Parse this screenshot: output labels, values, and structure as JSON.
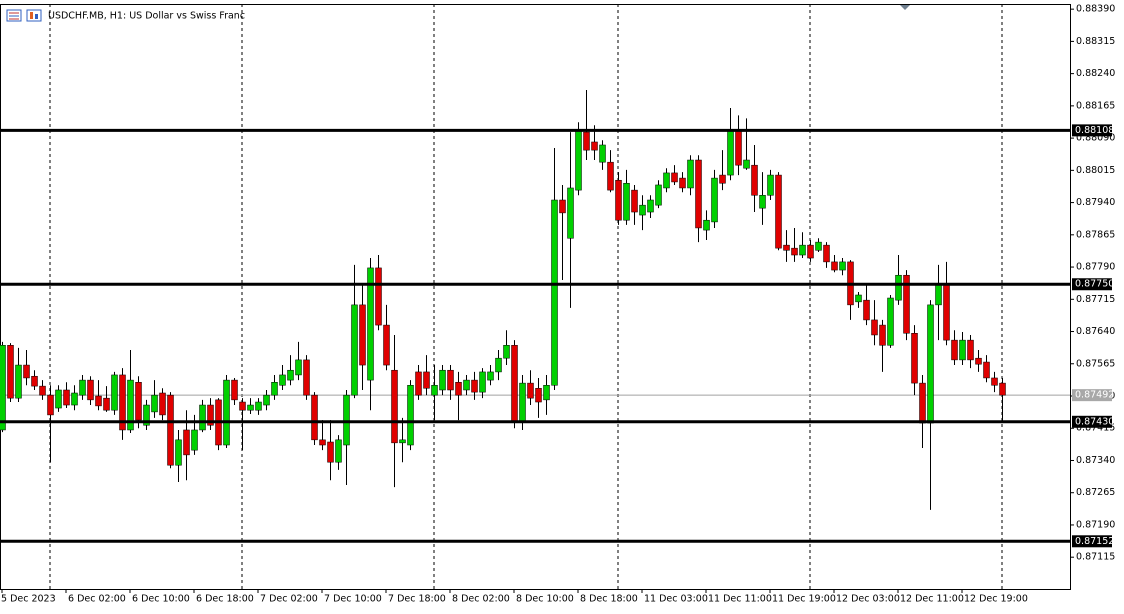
{
  "chart_data": {
    "type": "candlestick",
    "title": "USDCHF.MB, H1:  US Dollar vs Swiss Franc",
    "categories": [
      "5 Dec 2023",
      null,
      null,
      null,
      null,
      null,
      null,
      null,
      "6 Dec 02:00",
      null,
      null,
      null,
      null,
      null,
      null,
      null,
      "6 Dec 10:00",
      null,
      null,
      null,
      null,
      null,
      null,
      null,
      "6 Dec 18:00",
      null,
      null,
      null,
      null,
      null,
      null,
      null,
      "7 Dec 02:00",
      null,
      null,
      null,
      null,
      null,
      null,
      null,
      "7 Dec 10:00",
      null,
      null,
      null,
      null,
      null,
      null,
      null,
      "7 Dec 18:00",
      null,
      null,
      null,
      null,
      null,
      null,
      null,
      "8 Dec 02:00",
      null,
      null,
      null,
      null,
      null,
      null,
      null,
      "8 Dec 10:00",
      null,
      null,
      null,
      null,
      null,
      null,
      null,
      "8 Dec 18:00",
      null,
      null,
      null,
      null,
      null,
      null,
      null,
      "11 Dec 03:00",
      null,
      null,
      null,
      null,
      null,
      null,
      null,
      "11 Dec 11:00",
      null,
      null,
      null,
      null,
      null,
      null,
      null,
      "11 Dec 19:00",
      null,
      null,
      null,
      null,
      null,
      null,
      null,
      "12 Dec 03:00",
      null,
      null,
      null,
      null,
      null,
      null,
      null,
      "12 Dec 11:00",
      null,
      null,
      null,
      null,
      null,
      null,
      null,
      "12 Dec 19:00",
      null,
      null,
      null,
      null,
      null
    ],
    "open": [
      0.87411,
      0.87608,
      0.87485,
      0.87562,
      0.87536,
      0.87513,
      0.87492,
      0.87462,
      0.87504,
      0.87469,
      0.87492,
      0.87527,
      0.8749,
      0.87485,
      0.87457,
      0.87539,
      0.87411,
      0.87522,
      0.87422,
      0.87453,
      0.87497,
      0.87492,
      0.87329,
      0.87411,
      0.87364,
      0.87411,
      0.87469,
      0.87481,
      0.87376,
      0.87527,
      0.87476,
      0.87457,
      0.87457,
      0.87469,
      0.87492,
      0.87515,
      0.87527,
      0.87539,
      0.87574,
      0.87492,
      0.87388,
      0.87383,
      0.87336,
      0.87376,
      0.87492,
      0.87702,
      0.87527,
      0.87788,
      0.87655,
      0.8755,
      0.87381,
      0.87376,
      0.87546,
      0.87546,
      0.87492,
      0.87504,
      0.8755,
      0.87522,
      0.87504,
      0.87527,
      0.87499,
      0.87527,
      0.87546,
      0.87578,
      0.87608,
      0.87429,
      0.8752,
      0.87508,
      0.87481,
      0.87515,
      0.87946,
      0.87857,
      0.87969,
      0.88104,
      0.88081,
      0.88034,
      0.88034,
      0.87992,
      0.87899,
      0.87969,
      0.87911,
      0.87918,
      0.87934,
      0.87974,
      0.88009,
      0.87997,
      0.87974,
      0.88039,
      0.87876,
      0.87895,
      0.88004,
      0.88004,
      0.88109,
      0.8802,
      0.88027,
      0.87927,
      0.87957,
      0.88004,
      0.87841,
      0.87834,
      0.87818,
      0.87841,
      0.87829,
      0.87841,
      0.87802,
      0.87783,
      0.87802,
      0.87709,
      0.87713,
      0.87667,
      0.87655,
      0.87608,
      0.87713,
      0.87771,
      0.87636,
      0.8752,
      0.87427,
      0.87702,
      0.87748,
      0.8762,
      0.87574,
      0.8762,
      0.87578,
      0.87569,
      0.87532,
      0.8752
    ],
    "high": [
      0.87616,
      0.87613,
      0.87602,
      0.87597,
      0.8755,
      0.87527,
      0.87515,
      0.87515,
      0.87522,
      0.87515,
      0.87539,
      0.87536,
      0.87527,
      0.87513,
      0.87546,
      0.87555,
      0.87597,
      0.87536,
      0.87481,
      0.87527,
      0.87508,
      0.87499,
      0.87411,
      0.87457,
      0.87446,
      0.87481,
      0.87485,
      0.87485,
      0.87539,
      0.87532,
      0.87485,
      0.87485,
      0.87485,
      0.87504,
      0.87539,
      0.87562,
      0.87585,
      0.87616,
      0.87585,
      0.87499,
      0.87434,
      0.87434,
      0.87399,
      0.87504,
      0.87795,
      0.87748,
      0.87811,
      0.87818,
      0.87702,
      0.87632,
      0.87439,
      0.87527,
      0.87562,
      0.87585,
      0.87562,
      0.87562,
      0.87562,
      0.87546,
      0.87539,
      0.87546,
      0.87555,
      0.87562,
      0.87597,
      0.87643,
      0.8762,
      0.87539,
      0.8755,
      0.87532,
      0.87539,
      0.88067,
      0.87981,
      0.88104,
      0.88127,
      0.88202,
      0.8812,
      0.88085,
      0.88062,
      0.88011,
      0.88016,
      0.87981,
      0.87957,
      0.87957,
      0.87992,
      0.8802,
      0.88027,
      0.88011,
      0.8805,
      0.8805,
      0.87922,
      0.88016,
      0.88062,
      0.8816,
      0.88143,
      0.88136,
      0.88074,
      0.88011,
      0.88016,
      0.88011,
      0.87876,
      0.87881,
      0.87871,
      0.87853,
      0.87857,
      0.87848,
      0.87818,
      0.87811,
      0.87806,
      0.87732,
      0.87748,
      0.87713,
      0.87667,
      0.87725,
      0.87818,
      0.87783,
      0.87655,
      0.87539,
      0.87713,
      0.87795,
      0.87802,
      0.87643,
      0.87639,
      0.87632,
      0.87597,
      0.87585,
      0.87546,
      0.87532
    ],
    "low": [
      0.87406,
      0.87476,
      0.87476,
      0.87515,
      0.87504,
      0.87481,
      0.87336,
      0.87453,
      0.87462,
      0.87457,
      0.87481,
      0.87469,
      0.87457,
      0.87453,
      0.87446,
      0.87388,
      0.87404,
      0.87415,
      0.87411,
      0.87439,
      0.87434,
      0.87322,
      0.8729,
      0.87294,
      0.87353,
      0.87406,
      0.87411,
      0.87364,
      0.87369,
      0.87469,
      0.87364,
      0.87448,
      0.87446,
      0.87457,
      0.87481,
      0.87504,
      0.87515,
      0.87527,
      0.87481,
      0.87376,
      0.87364,
      0.87294,
      0.87318,
      0.87283,
      0.87485,
      0.87504,
      0.87457,
      0.87643,
      0.8755,
      0.87278,
      0.87336,
      0.87364,
      0.87481,
      0.87492,
      0.87434,
      0.87492,
      0.87481,
      0.87434,
      0.87492,
      0.87481,
      0.87485,
      0.87515,
      0.87527,
      0.87562,
      0.87415,
      0.87411,
      0.87469,
      0.87439,
      0.87446,
      0.87504,
      0.8776,
      0.87695,
      0.87957,
      0.88039,
      0.88039,
      0.88016,
      0.87964,
      0.87888,
      0.87888,
      0.87888,
      0.87876,
      0.87904,
      0.87927,
      0.87964,
      0.87981,
      0.87964,
      0.87957,
      0.87848,
      0.87853,
      0.87881,
      0.87969,
      0.87992,
      0.88004,
      0.88016,
      0.87918,
      0.87888,
      0.87946,
      0.87829,
      0.87802,
      0.87802,
      0.87811,
      0.87802,
      0.87825,
      0.87788,
      0.87778,
      0.87771,
      0.87667,
      0.87695,
      0.87655,
      0.87608,
      0.87546,
      0.87602,
      0.87702,
      0.8762,
      0.87492,
      0.87369,
      0.87225,
      0.8762,
      0.87608,
      0.87562,
      0.87562,
      0.87555,
      0.87546,
      0.87522,
      0.87499,
      0.87429
    ],
    "close": [
      0.87608,
      0.87485,
      0.87562,
      0.87532,
      0.87513,
      0.87492,
      0.87446,
      0.87504,
      0.87469,
      0.87497,
      0.87527,
      0.87481,
      0.87467,
      0.87457,
      0.87539,
      0.87411,
      0.87527,
      0.87434,
      0.87469,
      0.87492,
      0.87446,
      0.87329,
      0.87388,
      0.87353,
      0.87411,
      0.87469,
      0.87422,
      0.87376,
      0.87527,
      0.87481,
      0.87457,
      0.87469,
      0.87476,
      0.87492,
      0.87522,
      0.87539,
      0.8755,
      0.87574,
      0.87492,
      0.87388,
      0.87376,
      0.87336,
      0.87388,
      0.87492,
      0.87702,
      0.87562,
      0.87788,
      0.87655,
      0.87562,
      0.87381,
      0.87388,
      0.87515,
      0.87492,
      0.87508,
      0.87515,
      0.8755,
      0.87504,
      0.87492,
      0.87527,
      0.87499,
      0.87546,
      0.87546,
      0.87578,
      0.87608,
      0.87429,
      0.8752,
      0.87485,
      0.87476,
      0.87515,
      0.87946,
      0.87916,
      0.87974,
      0.88109,
      0.88062,
      0.88062,
      0.88074,
      0.87969,
      0.87899,
      0.87985,
      0.87918,
      0.87934,
      0.87946,
      0.87981,
      0.88009,
      0.87988,
      0.87974,
      0.88039,
      0.87881,
      0.87899,
      0.87997,
      0.87985,
      0.88109,
      0.88027,
      0.88039,
      0.87957,
      0.87957,
      0.88004,
      0.87834,
      0.87829,
      0.87818,
      0.87841,
      0.87811,
      0.87848,
      0.87802,
      0.87783,
      0.87802,
      0.87702,
      0.87725,
      0.87667,
      0.87632,
      0.87608,
      0.87718,
      0.87771,
      0.87636,
      0.8752,
      0.87427,
      0.87702,
      0.87748,
      0.8762,
      0.87574,
      0.8762,
      0.87574,
      0.87564,
      0.87532,
      0.87515,
      0.87492
    ],
    "bull_color": "#00d000",
    "bear_color": "#e00000",
    "ylim": [
      0.87041,
      0.88402
    ],
    "yticks": [
      {
        "value": 0.8839,
        "label": "0.88390"
      },
      0.88315,
      {
        "value": 0.8824,
        "label": "0.88240"
      },
      0.88165,
      {
        "value": 0.8809,
        "label": "0.88090"
      },
      0.88015,
      {
        "value": 0.8794,
        "label": "0.87940"
      },
      0.87865,
      {
        "value": 0.8779,
        "label": "0.87790"
      },
      0.87715,
      {
        "value": 0.8764,
        "label": "0.87640"
      },
      0.87565,
      {
        "value": 0.8749,
        "label": "0.87490"
      },
      0.87415,
      {
        "value": 0.8734,
        "label": "0.87340"
      },
      0.87265,
      {
        "value": 0.8719,
        "label": "0.87190"
      },
      0.87115
    ],
    "levels": [
      0.88108,
      {
        "value": 0.8775,
        "label": "0.87750"
      },
      {
        "value": 0.8743,
        "label": "0.87430"
      },
      0.87152
    ],
    "last_price": 0.87492
  }
}
